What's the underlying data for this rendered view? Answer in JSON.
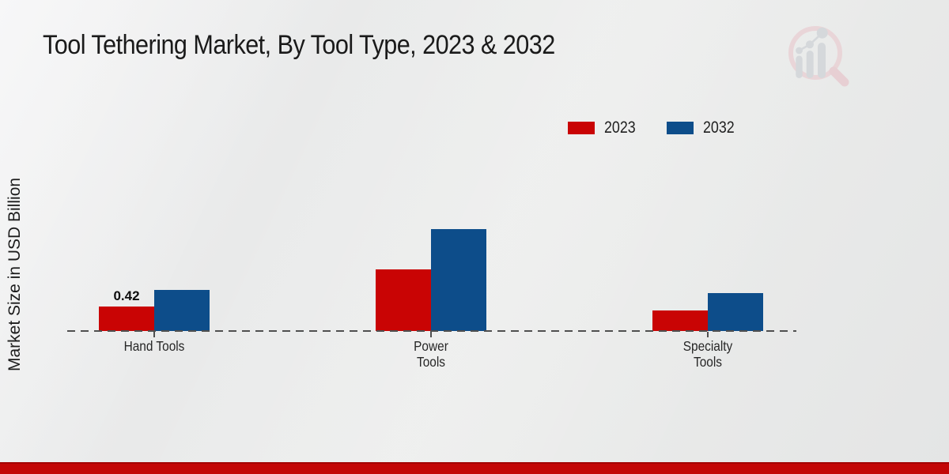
{
  "page": {
    "title": "Tool Tethering Market, By Tool Type, 2023 & 2032"
  },
  "ylabel": "Market Size in USD Billion",
  "legend": {
    "items": [
      {
        "label": "2023",
        "color": "#c90404"
      },
      {
        "label": "2032",
        "color": "#0d4d8a"
      }
    ]
  },
  "chart_data": {
    "type": "bar",
    "title": "Tool Tethering Market, By Tool Type, 2023 & 2032",
    "ylabel": "Market Size in USD Billion",
    "units": "USD Billion",
    "categories": [
      "Hand Tools",
      "Power Tools",
      "Specialty Tools"
    ],
    "category_label_lines": [
      [
        "Hand Tools"
      ],
      [
        "Power",
        "Tools"
      ],
      [
        "Specialty",
        "Tools"
      ]
    ],
    "series": [
      {
        "name": "2023",
        "color": "#c90404",
        "values": [
          0.42,
          1.06,
          0.35
        ]
      },
      {
        "name": "2032",
        "color": "#0d4d8a",
        "values": [
          0.7,
          1.75,
          0.65
        ]
      }
    ],
    "value_labels": [
      {
        "series": "2023",
        "category": "Hand Tools",
        "text": "0.42",
        "value": 0.42
      }
    ],
    "ylim": [
      0,
      2
    ],
    "grid": false,
    "legend_position": "top-right",
    "baseline_style": "dashed"
  },
  "colors": {
    "series_2023": "#c90404",
    "series_2032": "#0d4d8a",
    "bottom_stripe": "#c30606",
    "axis_dash": "#4f4f4f",
    "title_text": "#1a1a1a"
  },
  "watermark": {
    "icon": "market-research-future-logo"
  }
}
